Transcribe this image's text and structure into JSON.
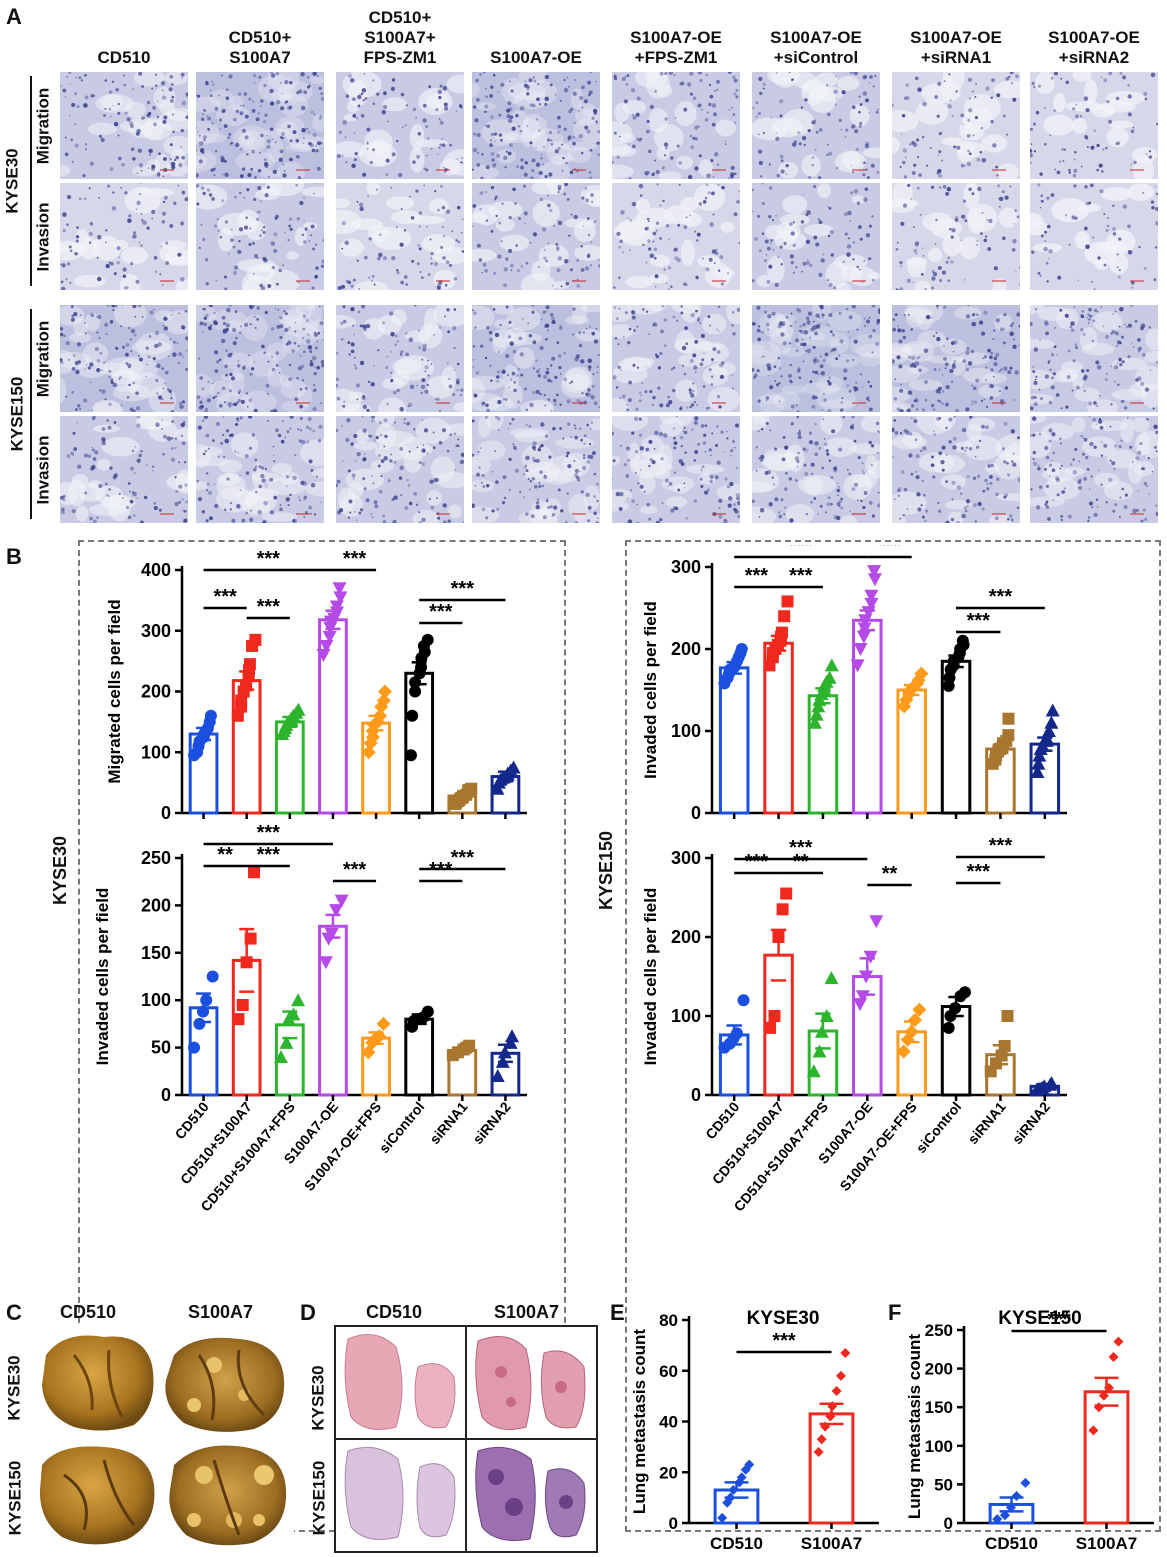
{
  "panel_letters": {
    "a": "A",
    "b": "B",
    "c": "C",
    "d": "D",
    "e": "E",
    "f": "F"
  },
  "panelA": {
    "columns": [
      [
        "CD510"
      ],
      [
        "CD510+",
        "S100A7"
      ],
      [
        "CD510+",
        "S100A7+",
        "FPS-ZM1"
      ],
      [
        "S100A7-OE"
      ],
      [
        "S100A7-OE",
        "+FPS-ZM1"
      ],
      [
        "S100A7-OE",
        "+siControl"
      ],
      [
        "S100A7-OE",
        "+siRNA1"
      ],
      [
        "S100A7-OE",
        "+siRNA2"
      ]
    ],
    "cell_lines": [
      "KYSE30",
      "KYSE150"
    ],
    "assays": [
      "Migration",
      "Invasion"
    ],
    "stain_color": "#3a3f8f"
  },
  "panelB": {
    "side_labels": [
      "KYSE30",
      "KYSE150"
    ],
    "colors": {
      "CD510": "#1a4fe0",
      "CD510+S100A7": "#f0281e",
      "CD510+S100A7+FPS": "#2cb52c",
      "S100A7-OE": "#b54ae8",
      "S100A7-OE+FPS": "#ff9a1a",
      "siControl": "#000000",
      "siRNA1": "#a8762e",
      "siRNA2": "#14288c"
    }
  },
  "chart_data": [
    {
      "type": "bar",
      "panel": "B-top-left",
      "categories": [
        "CD510",
        "CD510+S100A7",
        "CD510+S100A7+FPS",
        "S100A7-OE",
        "S100A7-OE+FPS",
        "siControl",
        "siRNA1",
        "siRNA2"
      ],
      "values": [
        130,
        218,
        150,
        318,
        148,
        230,
        28,
        60
      ],
      "errors": [
        10,
        15,
        8,
        15,
        12,
        18,
        4,
        8
      ],
      "points": [
        [
          95,
          100,
          110,
          118,
          125,
          130,
          135,
          140,
          150,
          160
        ],
        [
          160,
          175,
          185,
          200,
          210,
          225,
          235,
          245,
          275,
          285
        ],
        [
          130,
          135,
          140,
          145,
          150,
          152,
          155,
          160,
          165,
          170
        ],
        [
          260,
          275,
          290,
          305,
          315,
          320,
          330,
          340,
          355,
          370
        ],
        [
          100,
          115,
          125,
          135,
          145,
          150,
          160,
          175,
          185,
          200
        ],
        [
          95,
          160,
          200,
          215,
          230,
          240,
          255,
          265,
          275,
          285
        ],
        [
          15,
          18,
          20,
          22,
          25,
          28,
          30,
          35,
          38,
          40
        ],
        [
          40,
          50,
          55,
          58,
          62,
          65,
          70,
          75
        ]
      ],
      "significance": [
        {
          "from": 0,
          "to": 1,
          "label": "***"
        },
        {
          "from": 1,
          "to": 2,
          "label": "***"
        },
        {
          "from": 0,
          "to": 3,
          "label": "***"
        },
        {
          "from": 3,
          "to": 4,
          "label": "***"
        },
        {
          "from": 5,
          "to": 6,
          "label": "***"
        },
        {
          "from": 5,
          "to": 7,
          "label": "***"
        }
      ],
      "ylabel": "Migrated cells per field",
      "ylim": [
        0,
        400
      ],
      "yticks": [
        0,
        100,
        200,
        300,
        400
      ]
    },
    {
      "type": "bar",
      "panel": "B-bottom-left",
      "categories": [
        "CD510",
        "CD510+S100A7",
        "CD510+S100A7+FPS",
        "S100A7-OE",
        "S100A7-OE+FPS",
        "siControl",
        "siRNA1",
        "siRNA2"
      ],
      "values": [
        92,
        142,
        74,
        178,
        60,
        80,
        47,
        44
      ],
      "errors": [
        15,
        33,
        14,
        12,
        6,
        5,
        3,
        9
      ],
      "points": [
        [
          50,
          75,
          88,
          100,
          125
        ],
        [
          80,
          95,
          140,
          165,
          235
        ],
        [
          40,
          55,
          80,
          85,
          100
        ],
        [
          140,
          165,
          170,
          195,
          205
        ],
        [
          45,
          55,
          60,
          62,
          75
        ],
        [
          72,
          78,
          80,
          82,
          88
        ],
        [
          42,
          45,
          48,
          50,
          52
        ],
        [
          20,
          35,
          45,
          55,
          62
        ]
      ],
      "significance": [
        {
          "from": 0,
          "to": 1,
          "label": "**"
        },
        {
          "from": 1,
          "to": 2,
          "label": "***"
        },
        {
          "from": 0,
          "to": 3,
          "label": "***"
        },
        {
          "from": 3,
          "to": 4,
          "label": "***"
        },
        {
          "from": 5,
          "to": 6,
          "label": "***"
        },
        {
          "from": 5,
          "to": 7,
          "label": "***"
        }
      ],
      "ylabel": "Invaded cells per field",
      "ylim": [
        0,
        250
      ],
      "yticks": [
        0,
        50,
        100,
        150,
        200,
        250
      ]
    },
    {
      "type": "bar",
      "panel": "B-top-right",
      "categories": [
        "CD510",
        "CD510+S100A7",
        "CD510+S100A7+FPS",
        "S100A7-OE",
        "S100A7-OE+FPS",
        "siControl",
        "siRNA1",
        "siRNA2"
      ],
      "values": [
        177,
        207,
        143,
        235,
        150,
        185,
        78,
        84
      ],
      "errors": [
        7,
        9,
        9,
        12,
        6,
        7,
        5,
        8
      ],
      "points": [
        [
          158,
          165,
          170,
          175,
          178,
          180,
          185,
          190,
          195,
          200
        ],
        [
          180,
          190,
          195,
          200,
          205,
          210,
          215,
          220,
          240,
          258
        ],
        [
          110,
          120,
          130,
          138,
          145,
          150,
          155,
          160,
          165,
          180
        ],
        [
          180,
          200,
          215,
          225,
          235,
          245,
          255,
          265,
          285,
          295
        ],
        [
          130,
          138,
          145,
          148,
          150,
          155,
          158,
          162,
          170
        ],
        [
          155,
          165,
          175,
          180,
          185,
          190,
          195,
          200,
          205,
          210
        ],
        [
          60,
          65,
          70,
          75,
          78,
          80,
          85,
          88,
          95,
          115
        ],
        [
          50,
          60,
          70,
          78,
          82,
          88,
          92,
          100,
          110,
          125
        ]
      ],
      "significance": [
        {
          "from": 0,
          "to": 1,
          "label": "***"
        },
        {
          "from": 1,
          "to": 2,
          "label": "***"
        },
        {
          "from": 0,
          "to": 3,
          "label": "***"
        },
        {
          "from": 3,
          "to": 4,
          "label": "***"
        },
        {
          "from": 5,
          "to": 6,
          "label": "***"
        },
        {
          "from": 5,
          "to": 7,
          "label": "***"
        }
      ],
      "ylabel": "Invaded cells per field",
      "ylim": [
        0,
        300
      ],
      "yticks": [
        0,
        100,
        200,
        300
      ]
    },
    {
      "type": "bar",
      "panel": "B-bottom-right",
      "categories": [
        "CD510",
        "CD510+S100A7",
        "CD510+S100A7+FPS",
        "S100A7-OE",
        "S100A7-OE+FPS",
        "siControl",
        "siRNA1",
        "siRNA2"
      ],
      "values": [
        76,
        177,
        81,
        150,
        80,
        112,
        51,
        11
      ],
      "errors": [
        12,
        32,
        22,
        23,
        13,
        12,
        12,
        3
      ],
      "points": [
        [
          60,
          65,
          72,
          78,
          120
        ],
        [
          85,
          100,
          200,
          235,
          255
        ],
        [
          30,
          55,
          80,
          100,
          148
        ],
        [
          115,
          125,
          150,
          175,
          220
        ],
        [
          55,
          70,
          80,
          95,
          108
        ],
        [
          85,
          100,
          110,
          125,
          130
        ],
        [
          30,
          40,
          50,
          62,
          100
        ],
        [
          7,
          9,
          11,
          13,
          15
        ]
      ],
      "significance": [
        {
          "from": 0,
          "to": 1,
          "label": "***"
        },
        {
          "from": 1,
          "to": 2,
          "label": "**"
        },
        {
          "from": 0,
          "to": 3,
          "label": "***"
        },
        {
          "from": 3,
          "to": 4,
          "label": "**"
        },
        {
          "from": 5,
          "to": 6,
          "label": "***"
        },
        {
          "from": 5,
          "to": 7,
          "label": "***"
        }
      ],
      "ylabel": "Invaded cells per field",
      "ylim": [
        0,
        300
      ],
      "yticks": [
        0,
        100,
        200,
        300
      ]
    },
    {
      "type": "bar",
      "panel": "E",
      "title": "KYSE30",
      "categories": [
        "CD510",
        "S100A7"
      ],
      "values": [
        13,
        43
      ],
      "errors": [
        3,
        4
      ],
      "points": [
        [
          2,
          8,
          10,
          13,
          16,
          18,
          21,
          23
        ],
        [
          28,
          33,
          38,
          42,
          46,
          52,
          58,
          67
        ]
      ],
      "significance": [
        {
          "from": 0,
          "to": 1,
          "label": "***"
        }
      ],
      "ylabel": "Lung metastasis count",
      "ylim": [
        0,
        80
      ],
      "yticks": [
        0,
        20,
        40,
        60,
        80
      ]
    },
    {
      "type": "bar",
      "panel": "F",
      "title": "KYSE150",
      "categories": [
        "CD510",
        "S100A7"
      ],
      "values": [
        24,
        170
      ],
      "errors": [
        9,
        18
      ],
      "points": [
        [
          5,
          10,
          20,
          35,
          52
        ],
        [
          120,
          150,
          165,
          175,
          215,
          235
        ]
      ],
      "significance": [
        {
          "from": 0,
          "to": 1,
          "label": "***"
        }
      ],
      "ylabel": "Lung metastasis count",
      "ylim": [
        0,
        250
      ],
      "yticks": [
        0,
        50,
        100,
        150,
        200,
        250
      ]
    }
  ],
  "panelC": {
    "col_labels": [
      "CD510",
      "S100A7"
    ],
    "row_labels": [
      "KYSE30",
      "KYSE150"
    ]
  },
  "panelD": {
    "col_labels": [
      "CD510",
      "S100A7"
    ],
    "row_labels": [
      "KYSE30",
      "KYSE150"
    ]
  }
}
